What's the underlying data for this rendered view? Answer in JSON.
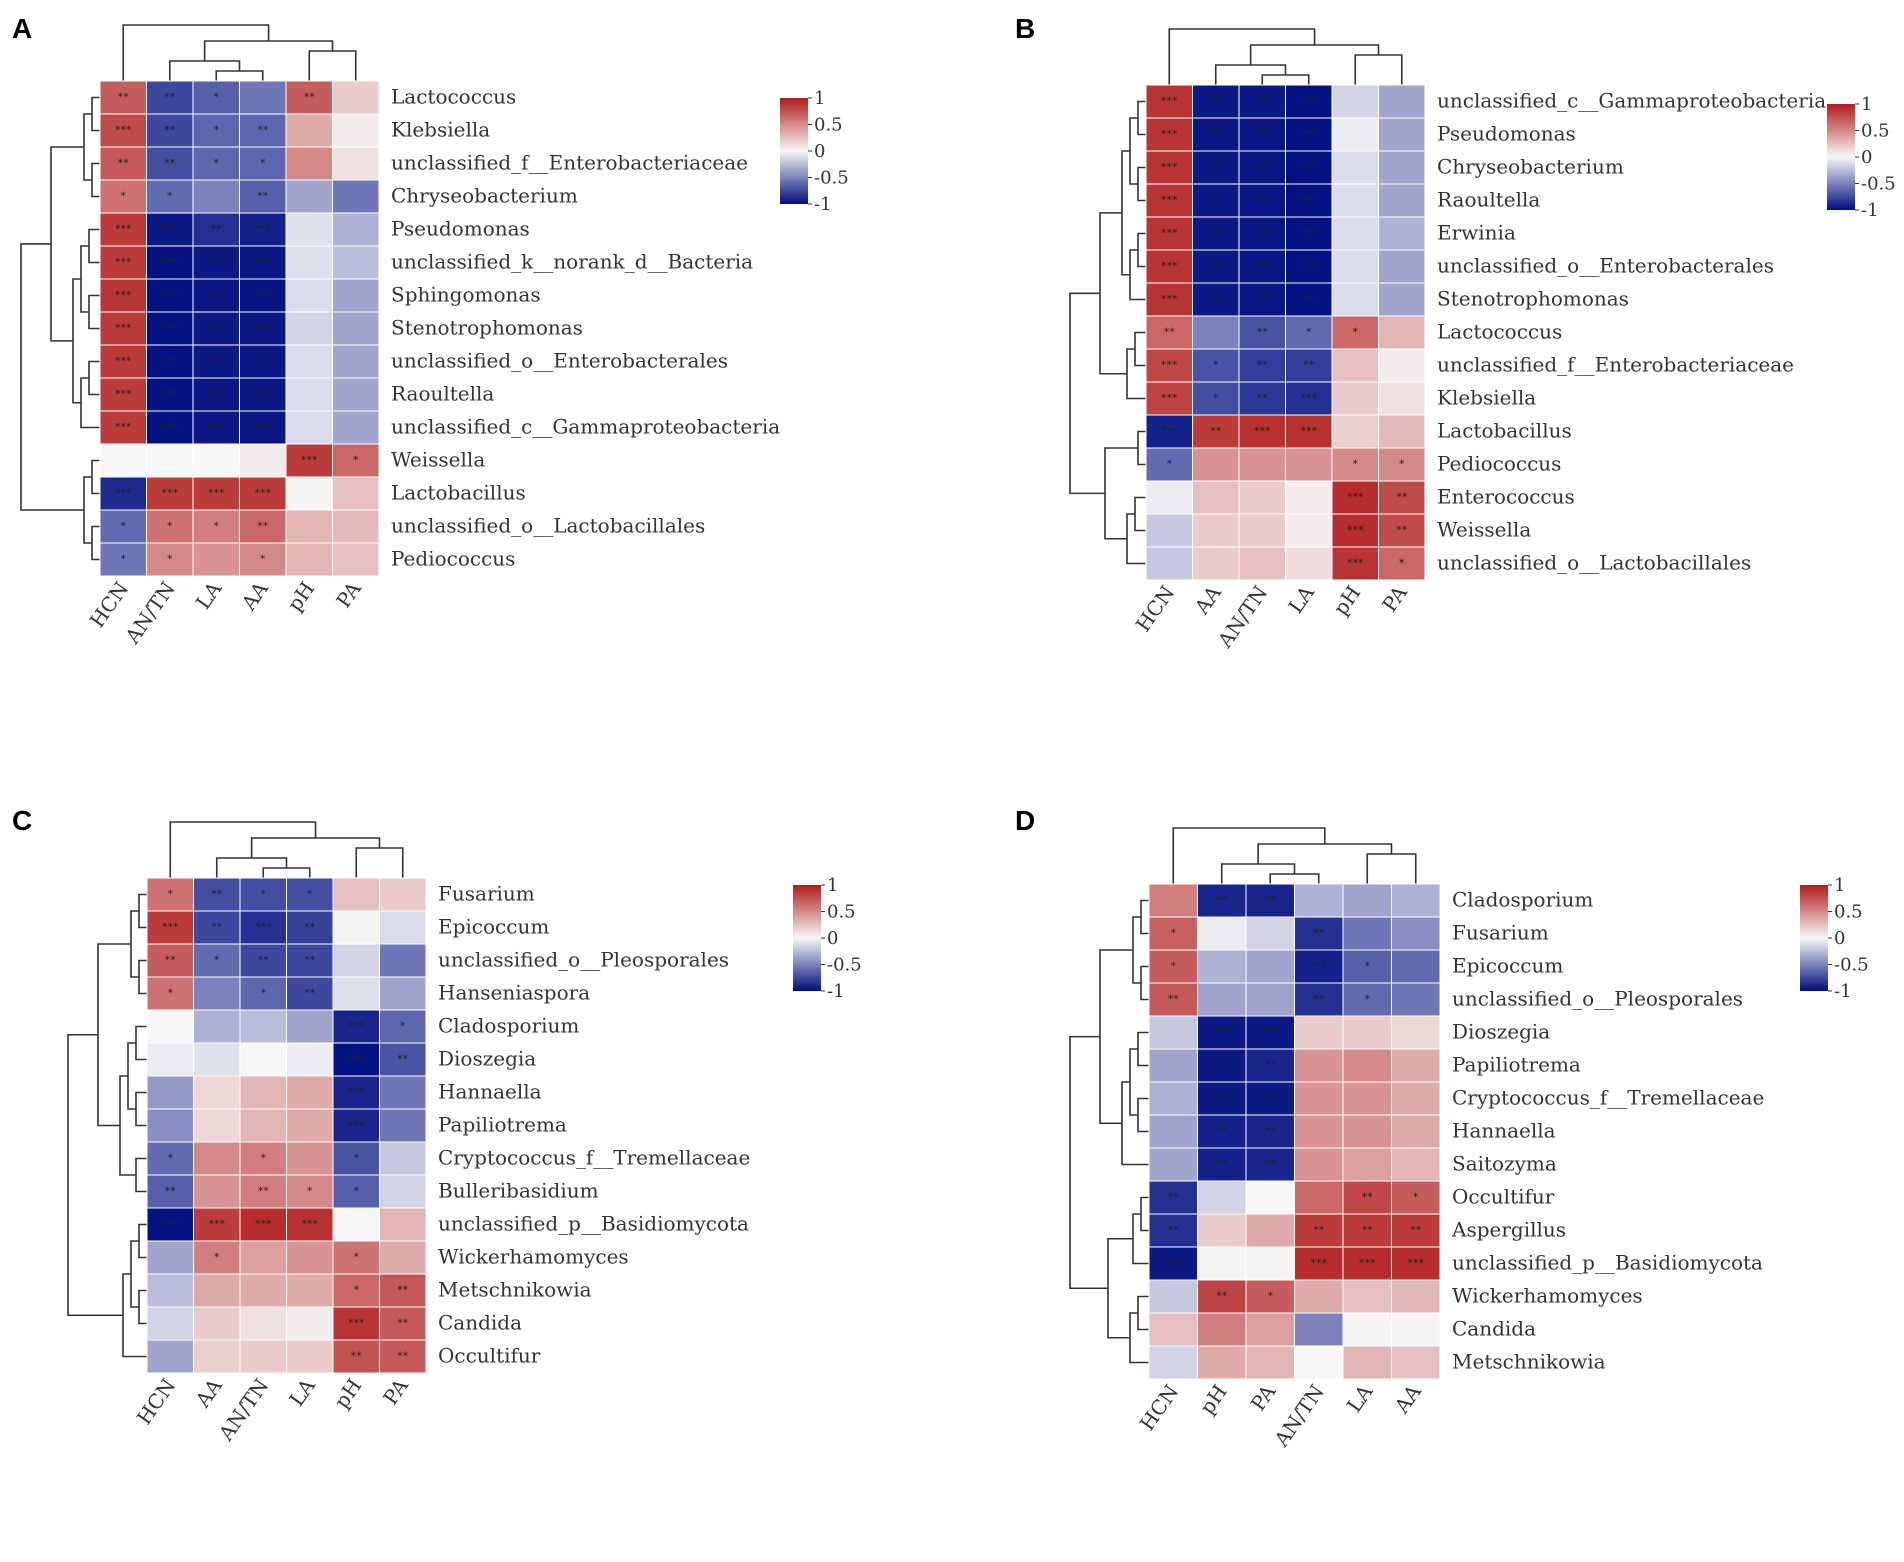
{
  "colors": {
    "low": "#000e80",
    "mid": "#f7f7f7",
    "high": "#b11b1b",
    "cell_border": "#ffffff",
    "tree": "#333333"
  },
  "legend_ticks": [
    "1",
    "0.5",
    "0",
    "-0.5",
    "-1"
  ],
  "chart_data": [
    {
      "panel": "A",
      "type": "heatmap",
      "value_range": [
        -1,
        1
      ],
      "columns": [
        "HCN",
        "AN/TN",
        "LA",
        "AA",
        "pH",
        "PA"
      ],
      "rows": [
        "Lactococcus",
        "Klebsiella",
        "unclassified_f__Enterobacteriaceae",
        "Chryseobacterium",
        "Pseudomonas",
        "unclassified_k__norank_d__Bacteria",
        "Sphingomonas",
        "Stenotrophomonas",
        "unclassified_o__Enterobacterales",
        "Raoultella",
        "unclassified_c__Gammaproteobacteria",
        "Weissella",
        "Lactobacillus",
        "unclassified_o__Lactobacillales",
        "Pediococcus"
      ],
      "values": [
        [
          0.7,
          -0.75,
          -0.65,
          -0.55,
          0.7,
          0.2
        ],
        [
          0.78,
          -0.75,
          -0.62,
          -0.62,
          0.35,
          0.05
        ],
        [
          0.72,
          -0.72,
          -0.62,
          -0.62,
          0.5,
          0.1
        ],
        [
          0.6,
          -0.6,
          -0.5,
          -0.65,
          -0.35,
          -0.55
        ],
        [
          0.85,
          -0.95,
          -0.85,
          -0.92,
          -0.1,
          -0.3
        ],
        [
          0.85,
          -0.98,
          -0.95,
          -0.96,
          -0.1,
          -0.25
        ],
        [
          0.88,
          -0.98,
          -0.96,
          -0.97,
          -0.12,
          -0.35
        ],
        [
          0.86,
          -0.98,
          -0.95,
          -0.96,
          -0.15,
          -0.35
        ],
        [
          0.86,
          -0.98,
          -0.95,
          -0.96,
          -0.12,
          -0.35
        ],
        [
          0.85,
          -0.98,
          -0.96,
          -0.96,
          -0.12,
          -0.35
        ],
        [
          0.85,
          -0.98,
          -0.96,
          -0.96,
          -0.12,
          -0.35
        ],
        [
          0.0,
          0.0,
          0.0,
          0.05,
          0.85,
          0.65
        ],
        [
          -0.88,
          0.85,
          0.85,
          0.85,
          0.02,
          0.25
        ],
        [
          -0.6,
          0.6,
          0.55,
          0.65,
          0.3,
          0.28
        ],
        [
          -0.55,
          0.5,
          0.45,
          0.5,
          0.3,
          0.25
        ]
      ],
      "stars": [
        [
          "**",
          "**",
          "*",
          "",
          "**",
          ""
        ],
        [
          "***",
          "**",
          "*",
          "**",
          "",
          ""
        ],
        [
          "**",
          "**",
          "*",
          "*",
          "",
          ""
        ],
        [
          "*",
          "*",
          "",
          "**",
          "",
          ""
        ],
        [
          "***",
          "***",
          "**",
          "***",
          "",
          ""
        ],
        [
          "***",
          "***",
          "***",
          "***",
          "",
          ""
        ],
        [
          "***",
          "***",
          "***",
          "***",
          "",
          ""
        ],
        [
          "***",
          "***",
          "***",
          "***",
          "",
          ""
        ],
        [
          "***",
          "***",
          "***",
          "***",
          "",
          ""
        ],
        [
          "***",
          "***",
          "***",
          "***",
          "",
          ""
        ],
        [
          "***",
          "***",
          "***",
          "***",
          "",
          ""
        ],
        [
          "",
          "",
          "",
          "",
          "***",
          "*"
        ],
        [
          "***",
          "***",
          "***",
          "***",
          "",
          ""
        ],
        [
          "*",
          "*",
          "*",
          "**",
          "",
          ""
        ],
        [
          "*",
          "*",
          "",
          "*",
          "",
          ""
        ]
      ]
    },
    {
      "panel": "B",
      "type": "heatmap",
      "value_range": [
        -1,
        1
      ],
      "columns": [
        "HCN",
        "AA",
        "AN/TN",
        "LA",
        "pH",
        "PA"
      ],
      "rows": [
        "unclassified_c__Gammaproteobacteria",
        "Pseudomonas",
        "Chryseobacterium",
        "Raoultella",
        "Erwinia",
        "unclassified_o__Enterobacterales",
        "Stenotrophomonas",
        "Lactococcus",
        "unclassified_f__Enterobacteriaceae",
        "Klebsiella",
        "Lactobacillus",
        "Pediococcus",
        "Enterococcus",
        "Weissella",
        "unclassified_o__Lactobacillales"
      ],
      "values": [
        [
          0.88,
          -0.95,
          -0.95,
          -0.98,
          -0.15,
          -0.35
        ],
        [
          0.88,
          -0.96,
          -0.96,
          -0.98,
          -0.05,
          -0.35
        ],
        [
          0.88,
          -0.95,
          -0.96,
          -0.98,
          -0.12,
          -0.35
        ],
        [
          0.88,
          -0.95,
          -0.96,
          -0.98,
          -0.12,
          -0.35
        ],
        [
          0.88,
          -0.95,
          -0.96,
          -0.98,
          -0.12,
          -0.3
        ],
        [
          0.88,
          -0.95,
          -0.96,
          -0.98,
          -0.12,
          -0.35
        ],
        [
          0.88,
          -0.95,
          -0.96,
          -0.98,
          -0.12,
          -0.35
        ],
        [
          0.65,
          -0.5,
          -0.7,
          -0.6,
          0.65,
          0.3
        ],
        [
          0.8,
          -0.7,
          -0.8,
          -0.8,
          0.25,
          0.05
        ],
        [
          0.82,
          -0.72,
          -0.82,
          -0.85,
          0.2,
          0.1
        ],
        [
          -0.92,
          0.85,
          0.9,
          0.9,
          0.18,
          0.28
        ],
        [
          -0.6,
          0.45,
          0.45,
          0.45,
          0.5,
          0.5
        ],
        [
          -0.05,
          0.25,
          0.2,
          0.05,
          0.92,
          0.78
        ],
        [
          -0.2,
          0.2,
          0.2,
          0.05,
          0.92,
          0.78
        ],
        [
          -0.2,
          0.2,
          0.25,
          0.12,
          0.88,
          0.65
        ]
      ],
      "stars": [
        [
          "***",
          "**",
          "**",
          "***",
          "",
          ""
        ],
        [
          "***",
          "***",
          "***",
          "***",
          "",
          ""
        ],
        [
          "***",
          "**",
          "***",
          "***",
          "",
          ""
        ],
        [
          "***",
          "**",
          "***",
          "***",
          "",
          ""
        ],
        [
          "***",
          "**",
          "***",
          "***",
          "",
          ""
        ],
        [
          "***",
          "**",
          "***",
          "***",
          "",
          ""
        ],
        [
          "***",
          "**",
          "***",
          "**",
          "",
          ""
        ],
        [
          "**",
          "",
          "**",
          "*",
          "*",
          ""
        ],
        [
          "***",
          "*",
          "**",
          "**",
          "",
          ""
        ],
        [
          "***",
          "*",
          "**",
          "***",
          "",
          ""
        ],
        [
          "***",
          "**",
          "***",
          "***",
          "",
          ""
        ],
        [
          "*",
          "",
          "",
          "",
          "*",
          "*"
        ],
        [
          "",
          "",
          "",
          "",
          "***",
          "**"
        ],
        [
          "",
          "",
          "",
          "",
          "***",
          "**"
        ],
        [
          "",
          "",
          "",
          "",
          "***",
          "*"
        ]
      ]
    },
    {
      "panel": "C",
      "type": "heatmap",
      "value_range": [
        -1,
        1
      ],
      "columns": [
        "HCN",
        "AA",
        "AN/TN",
        "LA",
        "pH",
        "PA"
      ],
      "rows": [
        "Fusarium",
        "Epicoccum",
        "unclassified_o__Pleosporales",
        "Hanseniaspora",
        "Cladosporium",
        "Dioszegia",
        "Hannaella",
        "Papiliotrema",
        "Cryptococcus_f__Tremellaceae",
        "Bulleribasidium",
        "unclassified_p__Basidiomycota",
        "Wickerhamomyces",
        "Metschnikowia",
        "Candida",
        "Occultifur"
      ],
      "values": [
        [
          0.6,
          -0.72,
          -0.72,
          -0.72,
          0.25,
          0.2
        ],
        [
          0.85,
          -0.75,
          -0.85,
          -0.78,
          0.02,
          -0.12
        ],
        [
          0.7,
          -0.6,
          -0.75,
          -0.75,
          -0.15,
          -0.55
        ],
        [
          0.6,
          -0.5,
          -0.62,
          -0.75,
          -0.1,
          -0.35
        ],
        [
          0.0,
          -0.3,
          -0.25,
          -0.35,
          -0.9,
          -0.62
        ],
        [
          -0.05,
          -0.1,
          0.0,
          -0.05,
          -0.98,
          -0.7
        ],
        [
          -0.4,
          0.15,
          0.3,
          0.35,
          -0.9,
          -0.55
        ],
        [
          -0.45,
          0.15,
          0.3,
          0.35,
          -0.9,
          -0.55
        ],
        [
          -0.6,
          0.5,
          0.55,
          0.45,
          -0.7,
          -0.2
        ],
        [
          -0.65,
          0.45,
          0.55,
          0.5,
          -0.65,
          -0.15
        ],
        [
          -0.98,
          0.85,
          0.92,
          0.9,
          0.0,
          0.3
        ],
        [
          -0.35,
          0.55,
          0.4,
          0.45,
          0.6,
          0.35
        ],
        [
          -0.25,
          0.35,
          0.35,
          0.35,
          0.65,
          0.72
        ],
        [
          -0.15,
          0.2,
          0.1,
          0.05,
          0.88,
          0.72
        ],
        [
          -0.35,
          0.18,
          0.2,
          0.2,
          0.75,
          0.72
        ]
      ],
      "stars": [
        [
          "*",
          "**",
          "*",
          "*",
          "",
          ""
        ],
        [
          "***",
          "**",
          "***",
          "**",
          "",
          ""
        ],
        [
          "**",
          "*",
          "**",
          "**",
          "",
          ""
        ],
        [
          "*",
          "",
          "*",
          "**",
          "",
          ""
        ],
        [
          "",
          "",
          "",
          "",
          "***",
          "*"
        ],
        [
          "",
          "",
          "",
          "",
          "***",
          "**"
        ],
        [
          "",
          "",
          "",
          "",
          "***",
          ""
        ],
        [
          "",
          "",
          "",
          "",
          "***",
          ""
        ],
        [
          "*",
          "",
          "*",
          "",
          "*",
          ""
        ],
        [
          "**",
          "",
          "**",
          "*",
          "*",
          ""
        ],
        [
          "***",
          "***",
          "***",
          "***",
          "",
          ""
        ],
        [
          "",
          "*",
          "",
          "",
          "*",
          ""
        ],
        [
          "",
          "",
          "",
          "",
          "*",
          "**"
        ],
        [
          "",
          "",
          "",
          "",
          "***",
          "**"
        ],
        [
          "",
          "",
          "",
          "",
          "**",
          "**"
        ]
      ]
    },
    {
      "panel": "D",
      "type": "heatmap",
      "value_range": [
        -1,
        1
      ],
      "columns": [
        "HCN",
        "pH",
        "PA",
        "AN/TN",
        "LA",
        "AA"
      ],
      "rows": [
        "Cladosporium",
        "Fusarium",
        "Epicoccum",
        "unclassified_o__Pleosporales",
        "Dioszegia",
        "Papiliotrema",
        "Cryptococcus_f__Tremellaceae",
        "Hannaella",
        "Saitozyma",
        "Occultifur",
        "Aspergillus",
        "unclassified_p__Basidiomycota",
        "Wickerhamomyces",
        "Candida",
        "Metschnikowia"
      ],
      "values": [
        [
          0.55,
          -0.9,
          -0.9,
          -0.3,
          -0.35,
          -0.3
        ],
        [
          0.68,
          -0.05,
          -0.15,
          -0.85,
          -0.55,
          -0.45
        ],
        [
          0.7,
          -0.3,
          -0.35,
          -0.92,
          -0.65,
          -0.6
        ],
        [
          0.72,
          -0.35,
          -0.35,
          -0.85,
          -0.6,
          -0.55
        ],
        [
          -0.2,
          -0.95,
          -0.95,
          0.2,
          0.2,
          0.15
        ],
        [
          -0.35,
          -0.95,
          -0.9,
          0.45,
          0.5,
          0.35
        ],
        [
          -0.3,
          -0.95,
          -0.95,
          0.45,
          0.45,
          0.35
        ],
        [
          -0.35,
          -0.92,
          -0.9,
          0.45,
          0.45,
          0.35
        ],
        [
          -0.35,
          -0.92,
          -0.9,
          0.45,
          0.4,
          0.3
        ],
        [
          -0.85,
          -0.15,
          0.0,
          0.65,
          0.8,
          0.7
        ],
        [
          -0.85,
          0.2,
          0.35,
          0.85,
          0.85,
          0.85
        ],
        [
          -0.95,
          0.02,
          0.02,
          0.92,
          0.92,
          0.92
        ],
        [
          -0.2,
          0.82,
          0.7,
          0.35,
          0.25,
          0.3
        ],
        [
          0.25,
          0.55,
          0.4,
          -0.5,
          0.02,
          0.02
        ],
        [
          -0.15,
          0.35,
          0.3,
          0.0,
          0.3,
          0.25
        ]
      ],
      "stars": [
        [
          "",
          "**",
          "**",
          "",
          "",
          ""
        ],
        [
          "*",
          "",
          "",
          "**",
          "",
          ""
        ],
        [
          "*",
          "",
          "",
          "***",
          "*",
          ""
        ],
        [
          "**",
          "",
          "",
          "**",
          "*",
          ""
        ],
        [
          "",
          "***",
          "***",
          "",
          "",
          ""
        ],
        [
          "",
          "***",
          "**",
          "",
          "",
          ""
        ],
        [
          "",
          "***",
          "***",
          "",
          "",
          ""
        ],
        [
          "",
          "**",
          "**",
          "",
          "",
          ""
        ],
        [
          "",
          "**",
          "**",
          "",
          "",
          ""
        ],
        [
          "**",
          "",
          "",
          "",
          "**",
          "*"
        ],
        [
          "**",
          "",
          "",
          "**",
          "**",
          "**"
        ],
        [
          "***",
          "",
          "",
          "***",
          "***",
          "***"
        ],
        [
          "",
          "**",
          "*",
          "",
          "",
          ""
        ],
        [
          "",
          "",
          "",
          "",
          "",
          ""
        ],
        [
          "",
          "",
          "",
          "",
          "",
          ""
        ]
      ]
    }
  ]
}
